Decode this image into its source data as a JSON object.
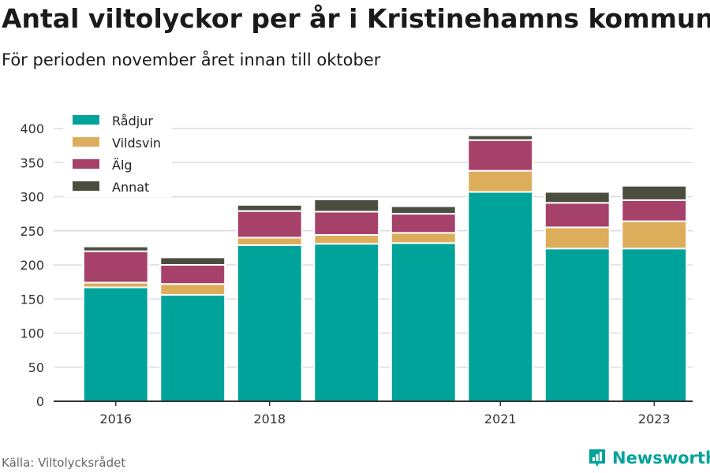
{
  "header": {
    "title": "Antal viltolyckor per år i Kristinehamns kommun",
    "subtitle": "För perioden november året innan till oktober"
  },
  "footer": {
    "source": "Källa: Viltolycksrådet",
    "brand": "Newsworthy",
    "brand_color": "#00a39a",
    "brand_icon": "bar-chart-badge-icon"
  },
  "chart_data": {
    "type": "bar",
    "stacked": true,
    "categories": [
      "2016",
      "2017",
      "2018",
      "2019",
      "2020",
      "2021",
      "2022",
      "2023"
    ],
    "x_tick_labels": [
      "2016",
      "",
      "2018",
      "",
      "",
      "2021",
      "",
      "2023"
    ],
    "series": [
      {
        "name": "Rådjur",
        "color": "#00a39a",
        "values": [
          167,
          156,
          229,
          231,
          232,
          307,
          224,
          224
        ]
      },
      {
        "name": "Vildsvin",
        "color": "#dcae5b",
        "values": [
          7,
          16,
          11,
          13,
          15,
          31,
          31,
          40
        ]
      },
      {
        "name": "Älg",
        "color": "#a6416a",
        "values": [
          46,
          28,
          39,
          34,
          28,
          45,
          36,
          31
        ]
      },
      {
        "name": "Annat",
        "color": "#4b4e3f",
        "values": [
          7,
          11,
          9,
          18,
          11,
          7,
          16,
          21
        ]
      }
    ],
    "ylim": [
      0,
      400
    ],
    "yticks": [
      0,
      50,
      100,
      150,
      200,
      250,
      300,
      350,
      400
    ],
    "grid": true,
    "legend": "top-left",
    "xlabel": "",
    "ylabel": ""
  }
}
